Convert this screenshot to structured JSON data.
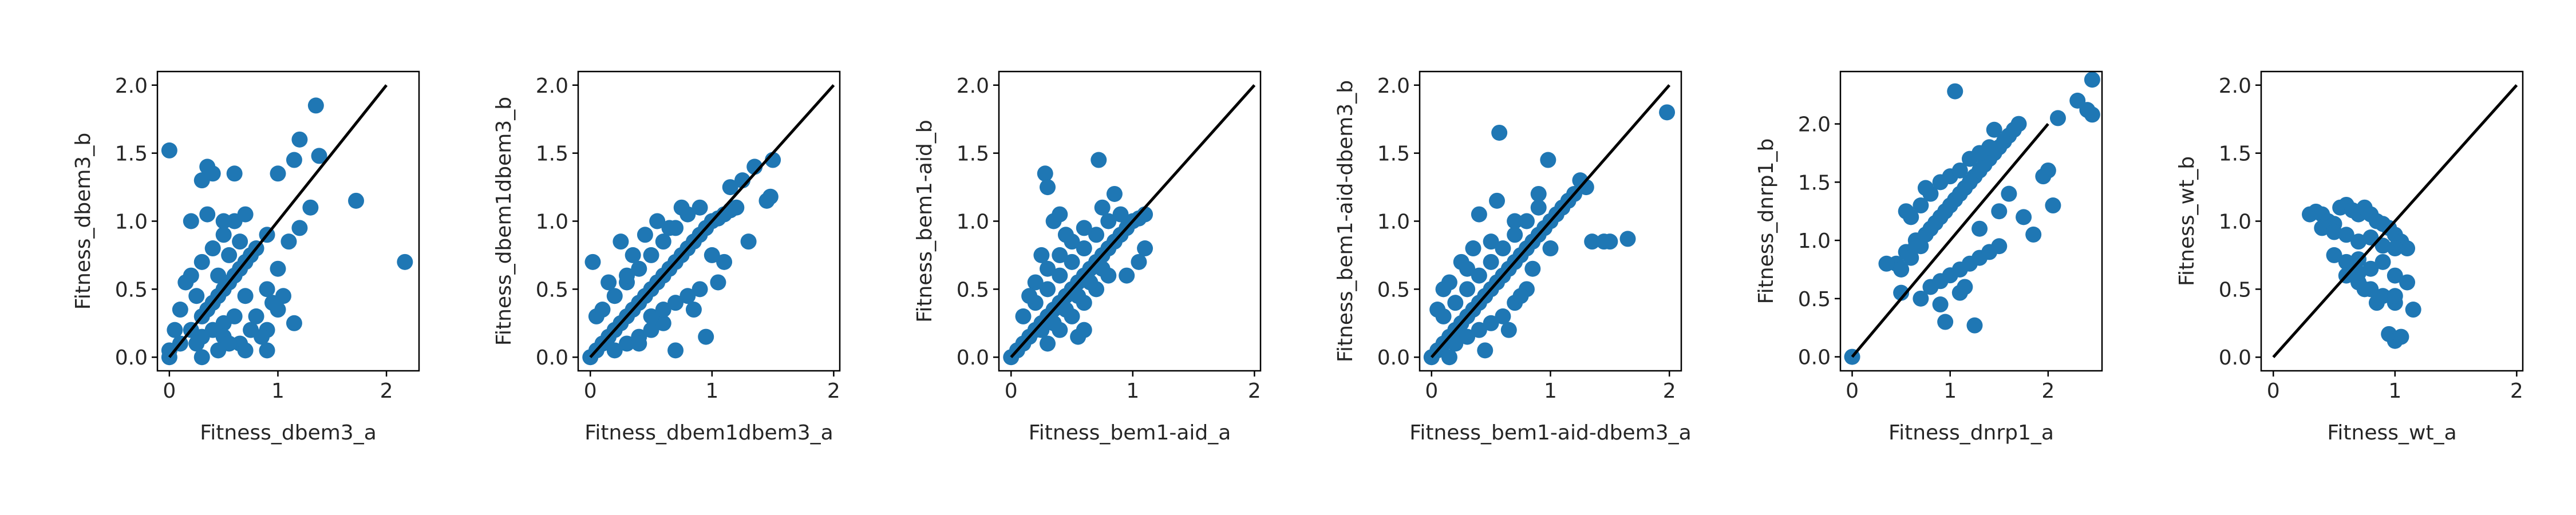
{
  "chart_data": [
    {
      "type": "scatter",
      "xlabel": "Fitness_dbem3_a",
      "ylabel": "Fitness_dbem3_b",
      "xlim": [
        -0.11,
        2.3
      ],
      "ylim": [
        -0.1,
        2.1
      ],
      "xticks": [
        "0",
        "1",
        "2"
      ],
      "yticks": [
        "0.0",
        "0.5",
        "1.0",
        "1.5",
        "2.0"
      ],
      "diagonal": [
        0,
        2
      ],
      "x": [
        0.0,
        0.1,
        0.2,
        0.3,
        0.35,
        0.4,
        0.45,
        0.5,
        0.55,
        0.6,
        0.65,
        0.7,
        0.75,
        0.8,
        0.9,
        0.2,
        0.3,
        0.4,
        0.5,
        0.6,
        0.7,
        0.3,
        0.4,
        0.5,
        0.6,
        0.25,
        0.45,
        0.55,
        0.65,
        0.35,
        0.5,
        0.0,
        0.05,
        0.1,
        0.15,
        0.9,
        1.0,
        1.1,
        1.2,
        1.3,
        0.8,
        0.9,
        1.0,
        0.7,
        0.2,
        0.3,
        0.4,
        1.35,
        1.72,
        2.17,
        1.15,
        1.0,
        1.38,
        1.2,
        0.35,
        0.6,
        0.0,
        0.65,
        0.85,
        0.95,
        1.15,
        1.05,
        0.9,
        0.5,
        0.7,
        0.3,
        0.45,
        0.25,
        0.55,
        0.75
      ],
      "y": [
        0.0,
        0.1,
        0.2,
        0.3,
        0.35,
        0.4,
        0.45,
        0.5,
        0.55,
        0.6,
        0.65,
        0.7,
        0.75,
        0.8,
        0.9,
        0.6,
        0.7,
        0.8,
        0.9,
        1.0,
        1.05,
        0.15,
        0.2,
        0.25,
        0.3,
        0.45,
        0.6,
        0.75,
        0.85,
        1.05,
        1.0,
        0.05,
        0.2,
        0.35,
        0.55,
        0.5,
        0.65,
        0.85,
        0.95,
        1.1,
        0.3,
        0.2,
        0.35,
        0.45,
        1.0,
        1.3,
        1.35,
        1.85,
        1.15,
        0.7,
        1.45,
        1.35,
        1.48,
        1.6,
        1.4,
        1.35,
        1.52,
        0.1,
        0.15,
        0.4,
        0.25,
        0.45,
        0.05,
        0.15,
        0.05,
        0.0,
        0.05,
        0.1,
        0.1,
        0.2
      ]
    },
    {
      "type": "scatter",
      "xlabel": "Fitness_dbem1dbem3_a",
      "ylabel": "Fitness_dbem1dbem3_b",
      "xlim": [
        -0.1,
        2.05
      ],
      "ylim": [
        -0.1,
        2.1
      ],
      "xticks": [
        "0",
        "1",
        "2"
      ],
      "yticks": [
        "0.0",
        "0.5",
        "1.0",
        "1.5",
        "2.0"
      ],
      "diagonal": [
        0,
        2
      ],
      "x": [
        0.0,
        0.05,
        0.1,
        0.15,
        0.2,
        0.25,
        0.3,
        0.35,
        0.4,
        0.45,
        0.5,
        0.55,
        0.6,
        0.65,
        0.7,
        0.75,
        0.8,
        0.85,
        0.9,
        0.95,
        1.0,
        1.05,
        1.1,
        1.15,
        1.2,
        0.1,
        0.2,
        0.3,
        0.4,
        0.5,
        0.6,
        0.7,
        0.8,
        0.9,
        0.2,
        0.3,
        0.4,
        0.5,
        0.6,
        0.3,
        0.5,
        0.7,
        0.9,
        1.1,
        1.3,
        0.15,
        0.35,
        0.55,
        0.75,
        1.45,
        1.5,
        1.48,
        1.15,
        1.05,
        1.0,
        0.8,
        0.6,
        0.4,
        0.25,
        0.45,
        0.65,
        0.85,
        1.25,
        1.35,
        0.95,
        0.7,
        0.05,
        0.02
      ],
      "y": [
        0.0,
        0.05,
        0.1,
        0.15,
        0.2,
        0.25,
        0.3,
        0.35,
        0.4,
        0.45,
        0.5,
        0.55,
        0.6,
        0.65,
        0.7,
        0.75,
        0.8,
        0.85,
        0.9,
        0.95,
        1.0,
        1.02,
        1.05,
        1.08,
        1.1,
        0.35,
        0.45,
        0.55,
        0.65,
        0.75,
        0.85,
        0.95,
        1.05,
        1.1,
        0.05,
        0.1,
        0.15,
        0.2,
        0.25,
        0.6,
        0.3,
        0.4,
        0.5,
        0.7,
        0.85,
        0.55,
        0.75,
        1.0,
        1.1,
        1.15,
        1.45,
        1.18,
        1.25,
        0.55,
        0.75,
        0.45,
        0.35,
        0.1,
        0.85,
        0.9,
        0.95,
        0.35,
        1.3,
        1.4,
        0.15,
        0.05,
        0.3,
        0.7
      ]
    },
    {
      "type": "scatter",
      "xlabel": "Fitness_bem1-aid_a",
      "ylabel": "Fitness_bem1-aid_b",
      "xlim": [
        -0.1,
        2.05
      ],
      "ylim": [
        -0.1,
        2.1
      ],
      "xticks": [
        "0",
        "1",
        "2"
      ],
      "yticks": [
        "0.0",
        "0.5",
        "1.0",
        "1.5",
        "2.0"
      ],
      "diagonal": [
        0,
        2
      ],
      "x": [
        0.0,
        0.05,
        0.1,
        0.15,
        0.2,
        0.25,
        0.3,
        0.35,
        0.4,
        0.45,
        0.5,
        0.55,
        0.6,
        0.65,
        0.7,
        0.75,
        0.8,
        0.85,
        0.9,
        0.95,
        1.0,
        1.05,
        1.1,
        0.1,
        0.2,
        0.3,
        0.4,
        0.5,
        0.6,
        0.7,
        0.8,
        0.9,
        0.3,
        0.4,
        0.5,
        0.6,
        0.7,
        0.8,
        0.2,
        0.3,
        0.4,
        0.5,
        0.6,
        0.25,
        0.35,
        0.45,
        0.55,
        0.65,
        0.75,
        0.28,
        0.3,
        0.72,
        0.85,
        1.1,
        0.35,
        0.4,
        0.15,
        0.6,
        0.55,
        0.95,
        1.05,
        0.45,
        0.25,
        0.75
      ],
      "y": [
        0.0,
        0.05,
        0.1,
        0.15,
        0.2,
        0.25,
        0.3,
        0.35,
        0.4,
        0.45,
        0.5,
        0.55,
        0.6,
        0.65,
        0.7,
        0.75,
        0.8,
        0.85,
        0.9,
        0.95,
        1.0,
        1.02,
        1.05,
        0.3,
        0.4,
        0.5,
        0.6,
        0.7,
        0.8,
        0.9,
        1.0,
        1.05,
        0.1,
        0.2,
        0.3,
        0.4,
        0.5,
        0.6,
        0.55,
        0.65,
        0.75,
        0.85,
        0.95,
        0.2,
        0.25,
        0.35,
        0.45,
        0.55,
        0.65,
        1.35,
        1.25,
        1.45,
        1.2,
        0.8,
        1.0,
        1.05,
        0.45,
        0.2,
        0.15,
        0.6,
        0.7,
        0.9,
        0.75,
        1.1
      ]
    },
    {
      "type": "scatter",
      "xlabel": "Fitness_bem1-aid-dbem3_a",
      "ylabel": "Fitness_bem1-aid-dbem3_b",
      "xlim": [
        -0.1,
        2.1
      ],
      "ylim": [
        -0.1,
        2.1
      ],
      "xticks": [
        "0",
        "1",
        "2"
      ],
      "yticks": [
        "0.0",
        "0.5",
        "1.0",
        "1.5",
        "2.0"
      ],
      "diagonal": [
        0,
        2
      ],
      "x": [
        0.0,
        0.05,
        0.1,
        0.15,
        0.2,
        0.25,
        0.3,
        0.35,
        0.4,
        0.45,
        0.5,
        0.55,
        0.6,
        0.65,
        0.7,
        0.75,
        0.8,
        0.85,
        0.9,
        0.95,
        1.0,
        1.05,
        1.1,
        1.15,
        1.2,
        0.1,
        0.2,
        0.3,
        0.4,
        0.5,
        0.6,
        0.7,
        0.8,
        0.9,
        0.2,
        0.3,
        0.4,
        0.5,
        0.6,
        0.7,
        0.8,
        0.3,
        0.5,
        0.7,
        0.9,
        0.05,
        0.15,
        0.25,
        0.35,
        0.55,
        0.57,
        0.98,
        1.35,
        1.45,
        1.5,
        1.65,
        1.98,
        1.3,
        1.25,
        1.0,
        0.75,
        0.45,
        0.65,
        0.85,
        0.15,
        0.1,
        0.4
      ],
      "y": [
        0.0,
        0.05,
        0.1,
        0.15,
        0.2,
        0.25,
        0.3,
        0.35,
        0.4,
        0.45,
        0.5,
        0.55,
        0.6,
        0.65,
        0.7,
        0.75,
        0.8,
        0.85,
        0.9,
        0.95,
        1.0,
        1.05,
        1.1,
        1.15,
        1.2,
        0.3,
        0.4,
        0.5,
        0.6,
        0.7,
        0.8,
        0.9,
        1.0,
        1.1,
        0.1,
        0.15,
        0.2,
        0.25,
        0.3,
        0.4,
        0.5,
        0.65,
        0.85,
        1.0,
        1.2,
        0.35,
        0.55,
        0.7,
        0.8,
        1.15,
        1.65,
        1.45,
        0.85,
        0.85,
        0.85,
        0.87,
        1.8,
        1.25,
        1.3,
        0.8,
        0.45,
        0.05,
        0.2,
        0.65,
        0.0,
        0.5,
        1.05
      ]
    },
    {
      "type": "scatter",
      "xlabel": "Fitness_dnrp1_a",
      "ylabel": "Fitness_dnrp1_b",
      "xlim": [
        -0.12,
        2.55
      ],
      "ylim": [
        -0.12,
        2.45
      ],
      "xticks": [
        "0",
        "1",
        "2"
      ],
      "yticks": [
        "0.0",
        "0.5",
        "1.0",
        "1.5",
        "2.0"
      ],
      "diagonal": [
        0,
        2
      ],
      "x": [
        0.0,
        0.45,
        0.5,
        0.55,
        0.6,
        0.65,
        0.7,
        0.75,
        0.8,
        0.85,
        0.9,
        0.95,
        1.0,
        1.05,
        1.1,
        1.15,
        1.2,
        1.25,
        1.3,
        1.35,
        1.4,
        1.45,
        1.5,
        1.55,
        1.6,
        1.65,
        1.7,
        0.6,
        0.7,
        0.8,
        0.9,
        1.0,
        1.1,
        1.2,
        1.3,
        1.4,
        0.8,
        0.9,
        1.0,
        1.1,
        1.2,
        1.3,
        1.4,
        1.5,
        0.7,
        0.9,
        1.1,
        1.3,
        1.5,
        0.55,
        0.75,
        1.05,
        1.45,
        2.45,
        2.45,
        2.4,
        2.3,
        2.1,
        2.05,
        2.0,
        1.95,
        0.35,
        0.95,
        1.25,
        0.5,
        1.6,
        1.75,
        1.85,
        1.15,
        0.65
      ],
      "y": [
        0.0,
        0.8,
        0.75,
        0.9,
        0.85,
        1.0,
        0.95,
        1.05,
        1.1,
        1.15,
        1.2,
        1.25,
        1.3,
        1.35,
        1.4,
        1.45,
        1.5,
        1.55,
        1.6,
        1.65,
        1.7,
        1.75,
        1.8,
        1.85,
        1.9,
        1.95,
        2.0,
        1.2,
        1.3,
        1.4,
        1.5,
        1.55,
        1.6,
        1.7,
        1.75,
        1.8,
        0.6,
        0.65,
        0.7,
        0.75,
        0.8,
        0.85,
        0.9,
        0.95,
        0.5,
        0.45,
        0.55,
        1.1,
        1.25,
        1.25,
        1.45,
        2.28,
        1.95,
        2.38,
        2.08,
        2.12,
        2.2,
        2.05,
        1.3,
        1.6,
        1.55,
        0.8,
        0.3,
        0.27,
        0.55,
        1.4,
        1.2,
        1.05,
        0.6,
        0.95
      ]
    },
    {
      "type": "scatter",
      "xlabel": "Fitness_wt_a",
      "ylabel": "Fitness_wt_b",
      "xlim": [
        -0.1,
        2.05
      ],
      "ylim": [
        -0.1,
        2.1
      ],
      "xticks": [
        "0",
        "1",
        "2"
      ],
      "yticks": [
        "0.0",
        "0.5",
        "1.0",
        "1.5",
        "2.0"
      ],
      "diagonal": [
        0,
        2
      ],
      "x": [
        0.3,
        0.35,
        0.4,
        0.45,
        0.5,
        0.55,
        0.6,
        0.65,
        0.7,
        0.75,
        0.8,
        0.85,
        0.9,
        0.95,
        1.0,
        1.05,
        1.1,
        0.4,
        0.5,
        0.6,
        0.7,
        0.8,
        0.9,
        1.0,
        0.5,
        0.6,
        0.7,
        0.8,
        0.9,
        1.0,
        1.1,
        0.6,
        0.7,
        0.8,
        0.9,
        1.0,
        1.15,
        0.95,
        1.0,
        1.05,
        1.0,
        0.7,
        0.75,
        0.85
      ],
      "y": [
        1.05,
        1.07,
        1.05,
        1.0,
        0.98,
        1.1,
        1.12,
        1.08,
        1.05,
        1.1,
        1.05,
        1.0,
        0.98,
        0.95,
        0.9,
        0.85,
        0.8,
        0.95,
        0.92,
        0.9,
        0.85,
        0.88,
        0.82,
        0.8,
        0.75,
        0.7,
        0.72,
        0.65,
        0.7,
        0.6,
        0.55,
        0.6,
        0.55,
        0.5,
        0.45,
        0.4,
        0.35,
        0.17,
        0.12,
        0.15,
        0.45,
        0.62,
        0.5,
        0.4
      ]
    }
  ],
  "colors": {
    "point": "#1f77b4",
    "line": "#000000",
    "axis": "#000000"
  }
}
